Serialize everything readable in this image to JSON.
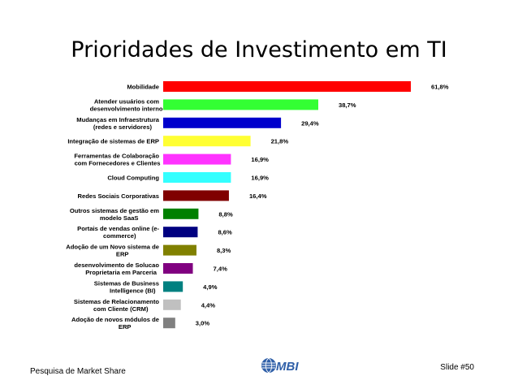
{
  "slide": {
    "footer_left": "Pesquisa de Market Share",
    "footer_right": "Slide #50",
    "logo_text": "MBI"
  },
  "chart_data": {
    "type": "bar",
    "orientation": "horizontal",
    "title": "Prioridades de Investimento em TI",
    "categories": [
      [
        "Mobilidade"
      ],
      [
        "Atender usuários com",
        "desenvolvimento interno"
      ],
      [
        "Mudanças em Infraestrutura",
        "(redes e servidores)"
      ],
      [
        "Integração de sistemas de ERP"
      ],
      [
        "Ferramentas de Colaboração",
        "com Fornecedores e Clientes"
      ],
      [
        "Cloud Computing"
      ],
      [
        "Redes Sociais Corporativas"
      ],
      [
        "Outros sistemas de gestão em",
        "modelo SaaS"
      ],
      [
        "Portais de vendas online (e-",
        "commerce)"
      ],
      [
        "Adoção de um Novo sistema de",
        "ERP"
      ],
      [
        "desenvolvimento de Solucao",
        "Proprietaria em Parceria"
      ],
      [
        "Sistemas de Business",
        "Intelligence (BI)"
      ],
      [
        "Sistemas de Relacionamento",
        "com Cliente (CRM)"
      ],
      [
        "Adoção de novos módulos de",
        "ERP"
      ]
    ],
    "values": [
      61.8,
      38.7,
      29.4,
      21.8,
      16.9,
      16.9,
      16.4,
      8.8,
      8.6,
      8.3,
      7.4,
      4.9,
      4.4,
      3.0
    ],
    "value_labels": [
      "61,8%",
      "38,7%",
      "29,4%",
      "21,8%",
      "16,9%",
      "16,9%",
      "16,4%",
      "8,8%",
      "8,6%",
      "8,3%",
      "7,4%",
      "4,9%",
      "4,4%",
      "3,0%"
    ],
    "colors": [
      "#ff0000",
      "#33ff33",
      "#0000cc",
      "#ffff33",
      "#ff33ff",
      "#33ffff",
      "#800000",
      "#008000",
      "#000080",
      "#808000",
      "#800080",
      "#008080",
      "#c0c0c0",
      "#808080"
    ],
    "xlim": [
      0,
      61.8
    ],
    "grid": false,
    "legend": "none"
  }
}
